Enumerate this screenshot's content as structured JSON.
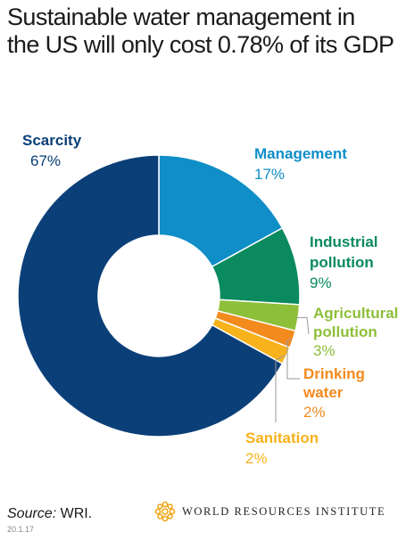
{
  "title": {
    "line1": "Sustainable water management in",
    "line2": "the US will only cost 0.78% of its GDP"
  },
  "chart_data": {
    "type": "pie",
    "donut": true,
    "slices": [
      {
        "name": "Scarcity",
        "value": 67,
        "label": "67%",
        "color": "#0b3f78"
      },
      {
        "name": "Management",
        "value": 17,
        "label": "17%",
        "color": "#0f8ec8"
      },
      {
        "name": "Industrial pollution",
        "name_lines": [
          "Industrial",
          "pollution"
        ],
        "value": 9,
        "label": "9%",
        "color": "#0a8a5e"
      },
      {
        "name": "Agricultural pollution",
        "name_lines": [
          "Agricultural",
          "pollution"
        ],
        "value": 3,
        "label": "3%",
        "color": "#8ebf3a"
      },
      {
        "name": "Drinking water",
        "name_lines": [
          "Drinking",
          "water"
        ],
        "value": 2,
        "label": "2%",
        "color": "#f28a1e"
      },
      {
        "name": "Sanitation",
        "value": 2,
        "label": "2%",
        "color": "#f7b21c"
      }
    ]
  },
  "footer": {
    "source_label": "Source:",
    "source_value": " WRI.",
    "date_code": "20.1.17",
    "org_name": "WORLD RESOURCES INSTITUTE"
  }
}
